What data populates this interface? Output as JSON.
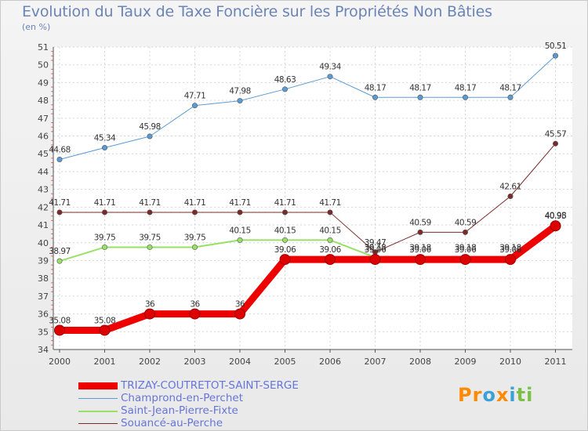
{
  "header": {
    "title": "Evolution du Taux de Taxe Foncière sur les Propriétés Non Bâties",
    "unit": "(en %)"
  },
  "logo": {
    "text": "Proxiti",
    "colors": [
      "#ff8a00",
      "#ff8a00",
      "#3aa0d8",
      "#ff8a00",
      "#3aa0d8",
      "#7ac143",
      "#7ac143"
    ]
  },
  "chart_data": {
    "type": "line",
    "title": "Evolution du Taux de Taxe Foncière sur les Propriétés Non Bâties",
    "ylabel": "(en %)",
    "xlabel": "",
    "ylim": [
      34,
      51
    ],
    "yticks": [
      34,
      35,
      36,
      37,
      38,
      39,
      40,
      41,
      42,
      43,
      44,
      45,
      46,
      47,
      48,
      49,
      50,
      51
    ],
    "categories": [
      "2000",
      "2001",
      "2002",
      "2003",
      "2004",
      "2005",
      "2006",
      "2007",
      "2008",
      "2009",
      "2010",
      "2011"
    ],
    "series": [
      {
        "name": "TRIZAY-COUTRETOT-SAINT-SERGE",
        "color": "#ee0000",
        "width": 9,
        "labels": [
          "35.08",
          "35.08",
          "36",
          "36",
          "36",
          "39.06",
          "39.06",
          "39.06",
          "39.06",
          "39.06",
          "39.06",
          "40.95"
        ],
        "values": [
          35.08,
          35.08,
          36,
          36,
          36,
          39.06,
          39.06,
          39.06,
          39.06,
          39.06,
          39.06,
          40.95
        ]
      },
      {
        "name": "Champrond-en-Perchet",
        "color": "#5b9bd5",
        "width": 1,
        "labels": [
          "44.68",
          "45.34",
          "45.98",
          "47.71",
          "47.98",
          "48.63",
          "49.34",
          "48.17",
          "48.17",
          "48.17",
          "48.17",
          "50.51"
        ],
        "values": [
          44.68,
          45.34,
          45.98,
          47.71,
          47.98,
          48.63,
          49.34,
          48.17,
          48.17,
          48.17,
          48.17,
          50.51
        ]
      },
      {
        "name": "Saint-Jean-Pierre-Fixte",
        "color": "#99e066",
        "width": 2,
        "labels": [
          "38.97",
          "39.75",
          "39.75",
          "39.75",
          "40.15",
          "40.15",
          "40.15",
          "39.18",
          "39.18",
          "39.18",
          "39.18",
          "40.98"
        ],
        "values": [
          38.97,
          39.75,
          39.75,
          39.75,
          40.15,
          40.15,
          40.15,
          39.18,
          39.18,
          39.18,
          39.18,
          40.98
        ]
      },
      {
        "name": "Souancé-au-Perche",
        "color": "#7a2a2a",
        "width": 1,
        "labels": [
          "41.71",
          "41.71",
          "41.71",
          "41.71",
          "41.71",
          "41.71",
          "41.71",
          "39.47",
          "40.59",
          "40.59",
          "42.61",
          "45.57"
        ],
        "values": [
          41.71,
          41.71,
          41.71,
          41.71,
          41.71,
          41.71,
          41.71,
          39.47,
          40.59,
          40.59,
          42.61,
          45.57
        ]
      }
    ]
  }
}
